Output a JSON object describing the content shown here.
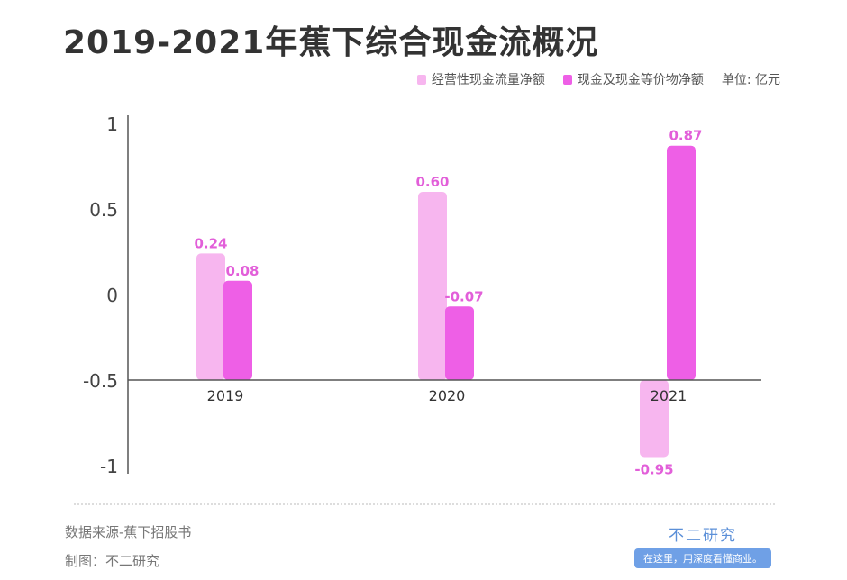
{
  "chart_data": {
    "type": "bar",
    "title": "2019-2021年蕉下综合现金流概况",
    "unit": "单位: 亿元",
    "categories": [
      "2019",
      "2020",
      "2021"
    ],
    "series": [
      {
        "name": "经营性现金流量净额",
        "values": [
          0.24,
          0.6,
          -0.95
        ],
        "color": "#f7b6ef"
      },
      {
        "name": "现金及现金等价物净额",
        "values": [
          0.08,
          -0.07,
          0.87
        ],
        "color": "#ee5fe6"
      }
    ],
    "data_labels": [
      [
        "0.24",
        "0.60",
        "-0.95"
      ],
      [
        "0.08",
        "-0.07",
        "0.87"
      ]
    ],
    "label_color": "#e25fd9",
    "ylim": [
      -1,
      1
    ],
    "yticks": [
      "1",
      "0.5",
      "0",
      "-0.5",
      "-1"
    ],
    "ytick_values": [
      1,
      0.5,
      0,
      -0.5,
      -1
    ],
    "baseline": -0.5,
    "grid": false,
    "legend_position": "top-right"
  },
  "footer": {
    "source": "数据来源-蕉下招股书",
    "credit": "制图：不二研究",
    "brand_name": "不二研究",
    "brand_slogan": "在这里，用深度看懂商业。"
  }
}
